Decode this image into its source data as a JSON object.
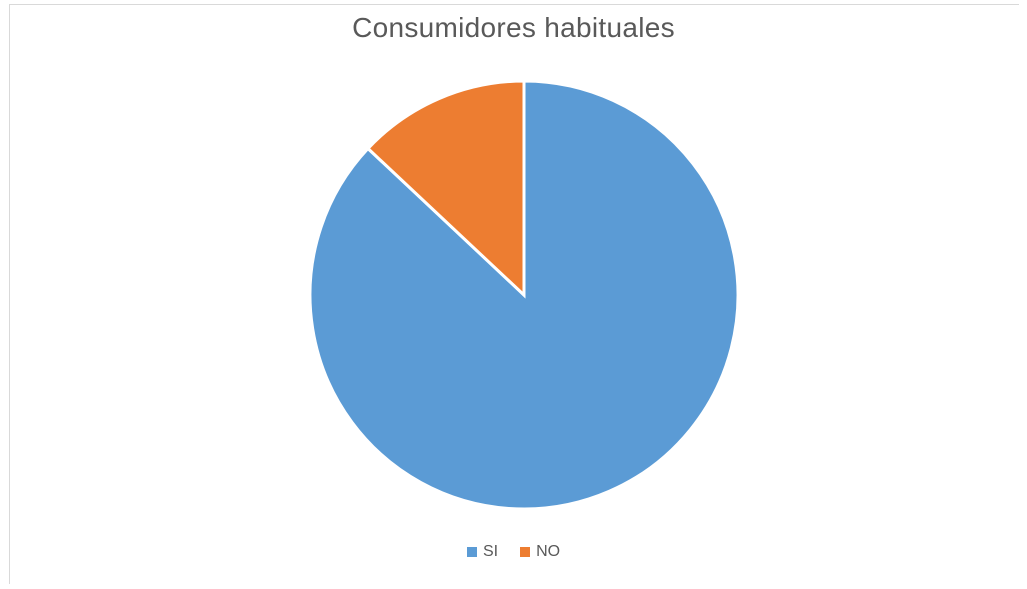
{
  "chart_data": {
    "type": "pie",
    "title": "Consumidores habituales",
    "categories": [
      "SI",
      "NO"
    ],
    "values": [
      87,
      13
    ],
    "colors": [
      "#5b9bd5",
      "#ed7d31"
    ],
    "legend_position": "bottom",
    "start_angle_deg": 0,
    "direction": "clockwise"
  }
}
